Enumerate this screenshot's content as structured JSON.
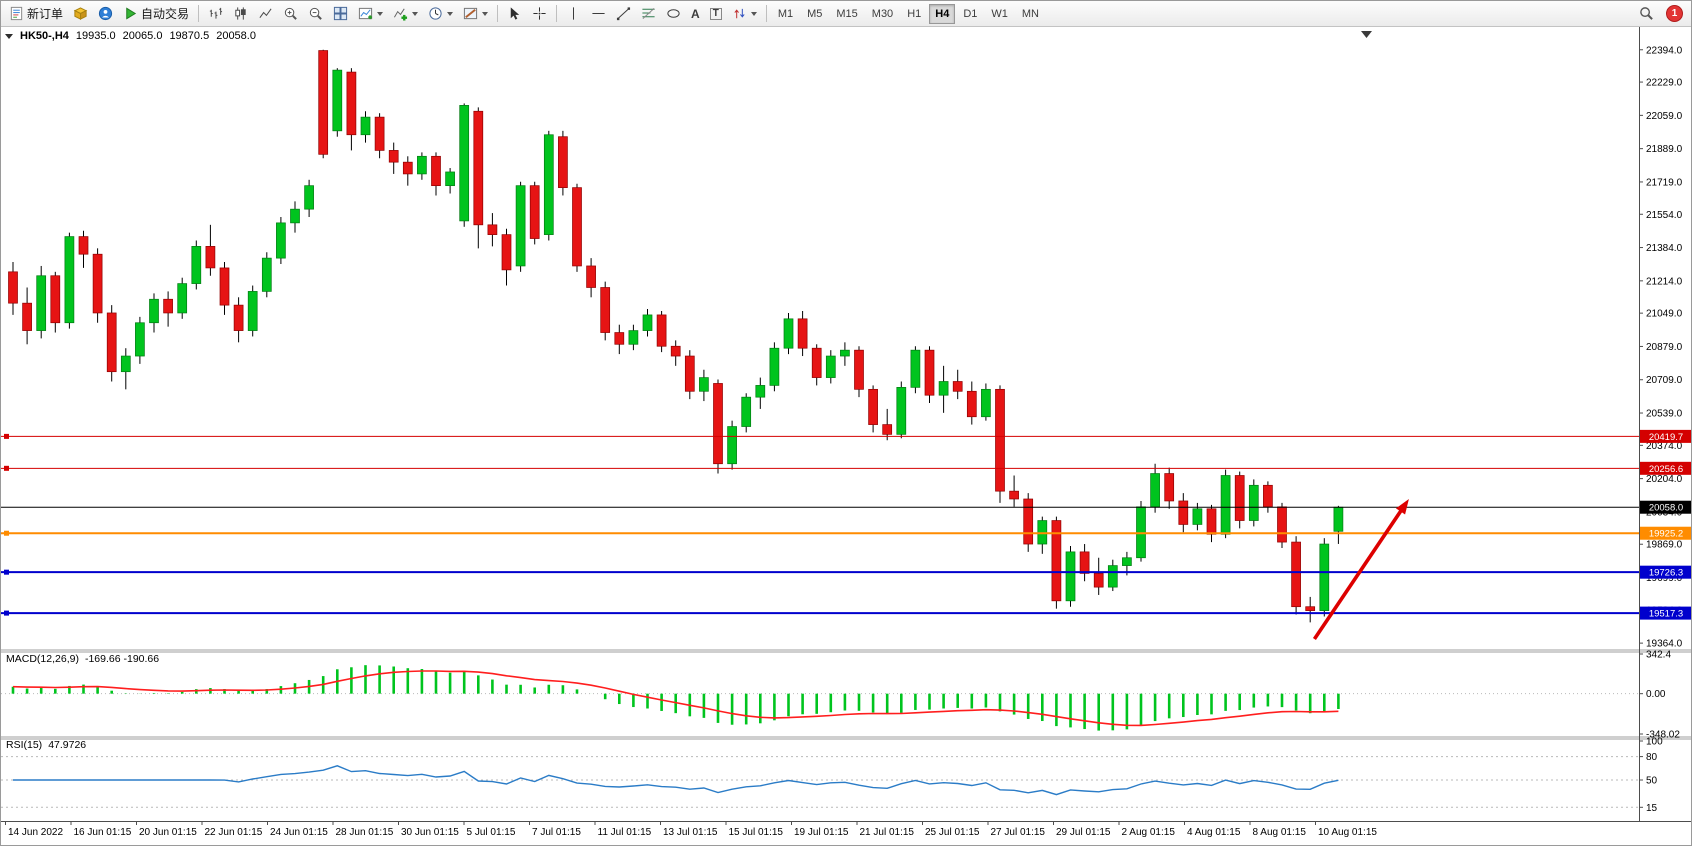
{
  "toolbar": {
    "new_order_label": "新订单",
    "auto_trading_label": "自动交易",
    "text_tool": "A",
    "label_tool": "T",
    "timeframes": [
      "M1",
      "M5",
      "M15",
      "M30",
      "H1",
      "H4",
      "D1",
      "W1",
      "MN"
    ],
    "active_timeframe": "H4",
    "notification_count": "1"
  },
  "header": {
    "symbol_period": "HK50-,H4",
    "open": "19935.0",
    "high": "20065.0",
    "low": "19870.5",
    "close": "20058.0"
  },
  "macd_panel": {
    "label": "MACD(12,26,9)",
    "values": "-169.66 -190.66"
  },
  "rsi_panel": {
    "label": "RSI(15)",
    "value": "47.9726"
  },
  "chart_data": {
    "type": "candlestick",
    "symbol": "HK50-",
    "timeframe": "H4",
    "ylim": [
      19334,
      22500
    ],
    "price_ticks": [
      22394,
      22229,
      22059,
      21889,
      21719,
      21554,
      21384,
      21214,
      21049,
      20879,
      20709,
      20539,
      20374,
      20204,
      20034,
      19869,
      19699,
      19534,
      19364
    ],
    "colors": {
      "up": "#00c41e",
      "up_border": "#027a12",
      "down": "#e61414",
      "down_border": "#8f0000",
      "wick": "#000000"
    },
    "candles": [
      [
        21260,
        21310,
        21040,
        21100
      ],
      [
        21100,
        21180,
        20890,
        20960
      ],
      [
        20960,
        21290,
        20920,
        21240
      ],
      [
        21240,
        21260,
        20950,
        21000
      ],
      [
        21000,
        21460,
        20970,
        21440
      ],
      [
        21440,
        21470,
        21280,
        21350
      ],
      [
        21350,
        21380,
        21000,
        21050
      ],
      [
        21050,
        21090,
        20700,
        20750
      ],
      [
        20750,
        20870,
        20660,
        20830
      ],
      [
        20830,
        21030,
        20790,
        21000
      ],
      [
        21000,
        21150,
        20950,
        21120
      ],
      [
        21120,
        21160,
        20980,
        21050
      ],
      [
        21050,
        21230,
        21020,
        21200
      ],
      [
        21200,
        21420,
        21170,
        21390
      ],
      [
        21390,
        21500,
        21240,
        21280
      ],
      [
        21280,
        21310,
        21040,
        21090
      ],
      [
        21090,
        21130,
        20900,
        20960
      ],
      [
        20960,
        21190,
        20930,
        21160
      ],
      [
        21160,
        21360,
        21130,
        21330
      ],
      [
        21330,
        21540,
        21300,
        21510
      ],
      [
        21510,
        21620,
        21460,
        21580
      ],
      [
        21580,
        21730,
        21540,
        21700
      ],
      [
        22390,
        22394,
        21840,
        21860
      ],
      [
        21980,
        22300,
        21950,
        22290
      ],
      [
        22280,
        22300,
        21880,
        21960
      ],
      [
        21960,
        22080,
        21920,
        22050
      ],
      [
        22050,
        22070,
        21840,
        21880
      ],
      [
        21880,
        21920,
        21760,
        21820
      ],
      [
        21820,
        21850,
        21700,
        21760
      ],
      [
        21760,
        21870,
        21730,
        21850
      ],
      [
        21850,
        21870,
        21650,
        21700
      ],
      [
        21700,
        21790,
        21660,
        21770
      ],
      [
        21520,
        22120,
        21490,
        22110
      ],
      [
        22080,
        22100,
        21380,
        21500
      ],
      [
        21500,
        21560,
        21390,
        21450
      ],
      [
        21450,
        21480,
        21190,
        21270
      ],
      [
        21290,
        21720,
        21260,
        21700
      ],
      [
        21700,
        21720,
        21400,
        21430
      ],
      [
        21450,
        21980,
        21420,
        21960
      ],
      [
        21950,
        21980,
        21650,
        21690
      ],
      [
        21690,
        21710,
        21260,
        21290
      ],
      [
        21290,
        21330,
        21130,
        21180
      ],
      [
        21180,
        21210,
        20910,
        20950
      ],
      [
        20950,
        20990,
        20840,
        20890
      ],
      [
        20890,
        20990,
        20860,
        20960
      ],
      [
        20960,
        21070,
        20930,
        21040
      ],
      [
        21040,
        21060,
        20850,
        20880
      ],
      [
        20880,
        20910,
        20780,
        20830
      ],
      [
        20830,
        20860,
        20610,
        20650
      ],
      [
        20650,
        20760,
        20600,
        20720
      ],
      [
        20690,
        20710,
        20230,
        20280
      ],
      [
        20280,
        20500,
        20250,
        20470
      ],
      [
        20470,
        20640,
        20440,
        20620
      ],
      [
        20620,
        20720,
        20560,
        20680
      ],
      [
        20680,
        20900,
        20650,
        20870
      ],
      [
        20870,
        21050,
        20840,
        21020
      ],
      [
        21020,
        21060,
        20830,
        20870
      ],
      [
        20870,
        20890,
        20680,
        20720
      ],
      [
        20720,
        20860,
        20690,
        20830
      ],
      [
        20830,
        20900,
        20780,
        20860
      ],
      [
        20860,
        20880,
        20620,
        20660
      ],
      [
        20660,
        20680,
        20440,
        20480
      ],
      [
        20480,
        20560,
        20400,
        20430
      ],
      [
        20430,
        20700,
        20410,
        20670
      ],
      [
        20670,
        20880,
        20640,
        20860
      ],
      [
        20860,
        20880,
        20590,
        20630
      ],
      [
        20630,
        20780,
        20540,
        20700
      ],
      [
        20700,
        20760,
        20610,
        20650
      ],
      [
        20650,
        20700,
        20480,
        20520
      ],
      [
        20520,
        20690,
        20500,
        20660
      ],
      [
        20660,
        20680,
        20080,
        20140
      ],
      [
        20140,
        20220,
        20060,
        20100
      ],
      [
        20100,
        20130,
        19830,
        19870
      ],
      [
        19870,
        20010,
        19820,
        19990
      ],
      [
        19990,
        20010,
        19540,
        19580
      ],
      [
        19580,
        19860,
        19550,
        19830
      ],
      [
        19830,
        19870,
        19680,
        19720
      ],
      [
        19720,
        19800,
        19610,
        19650
      ],
      [
        19650,
        19790,
        19630,
        19760
      ],
      [
        19760,
        19830,
        19710,
        19800
      ],
      [
        19800,
        20090,
        19780,
        20060
      ],
      [
        20060,
        20280,
        20030,
        20230
      ],
      [
        20230,
        20260,
        20050,
        20090
      ],
      [
        20090,
        20130,
        19930,
        19970
      ],
      [
        19970,
        20080,
        19940,
        20050
      ],
      [
        20050,
        20070,
        19880,
        19920
      ],
      [
        19920,
        20250,
        19900,
        20220
      ],
      [
        20220,
        20240,
        19950,
        19990
      ],
      [
        19990,
        20200,
        19960,
        20170
      ],
      [
        20170,
        20190,
        20030,
        20060
      ],
      [
        20060,
        20080,
        19850,
        19880
      ],
      [
        19880,
        19910,
        19510,
        19550
      ],
      [
        19550,
        19600,
        19470,
        19530
      ],
      [
        19530,
        19900,
        19500,
        19870
      ],
      [
        19935,
        20065,
        19870.5,
        20058
      ]
    ],
    "hlines": [
      {
        "price": 20419.7,
        "color": "#d40000",
        "width": 1,
        "marker": true
      },
      {
        "price": 20256.6,
        "color": "#d40000",
        "width": 1,
        "marker": true
      },
      {
        "price": 20058.0,
        "color": "#000000",
        "width": 1,
        "marker": false
      },
      {
        "price": 19925.2,
        "color": "#ff8c00",
        "width": 2,
        "marker": true
      },
      {
        "price": 19726.3,
        "color": "#0000cd",
        "width": 2,
        "marker": true
      },
      {
        "price": 19517.3,
        "color": "#0000cd",
        "width": 2,
        "marker": true
      }
    ],
    "arrow": {
      "from_index": 92.3,
      "from_price": 19385,
      "to_index": 99,
      "to_price": 20100,
      "color": "#dd0000"
    },
    "macd": {
      "label": "MACD(12,26,9)",
      "params": [
        12,
        26,
        9
      ],
      "value_main": -169.66,
      "value_signal": -190.66,
      "ylim": [
        -348.02,
        342.4
      ],
      "axis_ticks": [
        [
          342.4,
          "342.4"
        ],
        [
          0,
          "0.00"
        ],
        [
          -348.02,
          "-348.02"
        ]
      ],
      "hist_color": "#00c41e",
      "signal_color": "#ff1e1e"
    },
    "rsi": {
      "label": "RSI(15)",
      "period": 15,
      "value": 47.9726,
      "range": [
        0,
        100
      ],
      "levels": [
        80,
        50,
        15
      ],
      "axis_ticks": [
        [
          100,
          "100"
        ],
        [
          80,
          "80"
        ],
        [
          50,
          "50"
        ],
        [
          15,
          "15"
        ]
      ],
      "color": "#2b7cc7"
    },
    "time_labels": [
      "14 Jun 2022",
      "16 Jun 01:15",
      "20 Jun 01:15",
      "22 Jun 01:15",
      "24 Jun 01:15",
      "28 Jun 01:15",
      "30 Jun 01:15",
      "5 Jul 01:15",
      "7 Jul 01:15",
      "11 Jul 01:15",
      "13 Jul 01:15",
      "15 Jul 01:15",
      "19 Jul 01:15",
      "21 Jul 01:15",
      "25 Jul 01:15",
      "27 Jul 01:15",
      "29 Jul 01:15",
      "2 Aug 01:15",
      "4 Aug 01:15",
      "8 Aug 01:15",
      "10 Aug 01:15"
    ]
  }
}
